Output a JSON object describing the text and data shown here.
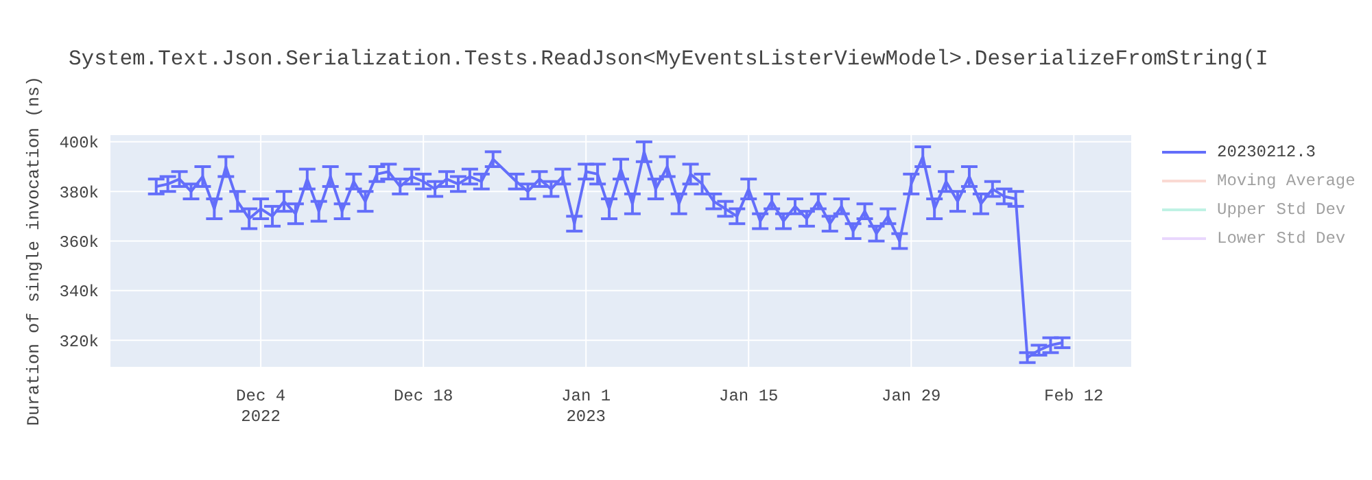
{
  "chart_data": {
    "type": "line",
    "title": "System.Text.Json.Serialization.Tests.ReadJson<MyEventsListerViewModel>.DeserializeFromString(I",
    "ylabel": "Duration of single invocation (ns)",
    "x": [
      "2022-11-25",
      "2022-11-26",
      "2022-11-27",
      "2022-11-28",
      "2022-11-29",
      "2022-11-30",
      "2022-12-01",
      "2022-12-02",
      "2022-12-03",
      "2022-12-04",
      "2022-12-05",
      "2022-12-06",
      "2022-12-07",
      "2022-12-08",
      "2022-12-09",
      "2022-12-10",
      "2022-12-11",
      "2022-12-12",
      "2022-12-13",
      "2022-12-14",
      "2022-12-15",
      "2022-12-16",
      "2022-12-17",
      "2022-12-18",
      "2022-12-19",
      "2022-12-20",
      "2022-12-21",
      "2022-12-22",
      "2022-12-23",
      "2022-12-24",
      "2022-12-26",
      "2022-12-27",
      "2022-12-28",
      "2022-12-29",
      "2022-12-30",
      "2022-12-31",
      "2023-01-01",
      "2023-01-02",
      "2023-01-03",
      "2023-01-04",
      "2023-01-05",
      "2023-01-06",
      "2023-01-07",
      "2023-01-08",
      "2023-01-09",
      "2023-01-10",
      "2023-01-11",
      "2023-01-12",
      "2023-01-13",
      "2023-01-14",
      "2023-01-15",
      "2023-01-16",
      "2023-01-17",
      "2023-01-18",
      "2023-01-19",
      "2023-01-20",
      "2023-01-21",
      "2023-01-22",
      "2023-01-23",
      "2023-01-24",
      "2023-01-25",
      "2023-01-26",
      "2023-01-27",
      "2023-01-28",
      "2023-01-29",
      "2023-01-30",
      "2023-01-31",
      "2023-02-01",
      "2023-02-02",
      "2023-02-03",
      "2023-02-04",
      "2023-02-05",
      "2023-02-06",
      "2023-02-07",
      "2023-02-08",
      "2023-02-09",
      "2023-02-10",
      "2023-02-11"
    ],
    "series": [
      {
        "name": "20230212.3",
        "color": "#636efa",
        "values": [
          382000,
          383000,
          385000,
          380000,
          386000,
          373000,
          390000,
          376000,
          369000,
          373000,
          370000,
          376000,
          371000,
          385000,
          372000,
          386000,
          372000,
          384000,
          376000,
          387000,
          388000,
          382000,
          386000,
          384000,
          381000,
          385000,
          383000,
          386000,
          384000,
          393000,
          384000,
          380000,
          385000,
          381000,
          386000,
          367000,
          388000,
          387000,
          373000,
          389000,
          375000,
          396000,
          381000,
          390000,
          375000,
          387000,
          383000,
          376000,
          373000,
          370000,
          381000,
          368000,
          376000,
          368000,
          374000,
          369000,
          376000,
          367000,
          374000,
          364000,
          372000,
          363000,
          370000,
          360000,
          383000,
          394000,
          373000,
          384000,
          376000,
          386000,
          375000,
          381000,
          378000,
          377000,
          313000,
          316000,
          318000,
          319000
        ],
        "errors": [
          3000,
          3000,
          3000,
          3000,
          4000,
          4000,
          4000,
          4000,
          4000,
          4000,
          4000,
          4000,
          4000,
          4000,
          4000,
          4000,
          3000,
          3000,
          4000,
          3000,
          3000,
          3000,
          3000,
          3000,
          3000,
          3000,
          3000,
          3000,
          3000,
          3000,
          3000,
          3000,
          3000,
          3000,
          3000,
          3000,
          3000,
          4000,
          4000,
          4000,
          4000,
          4000,
          4000,
          4000,
          4000,
          4000,
          4000,
          3000,
          3000,
          3000,
          4000,
          3000,
          3000,
          3000,
          3000,
          3000,
          3000,
          3000,
          3000,
          3000,
          3000,
          3000,
          3000,
          3000,
          4000,
          4000,
          4000,
          4000,
          4000,
          4000,
          4000,
          3000,
          3000,
          3000,
          2000,
          2000,
          3000,
          2000
        ]
      },
      {
        "name": "Moving Average",
        "color": "#f6b7a8",
        "values": [
          null,
          null,
          null,
          null,
          null,
          null,
          null,
          null,
          null,
          null,
          null,
          null,
          null,
          null,
          null,
          null,
          null,
          null,
          null,
          null,
          null,
          null,
          null,
          null,
          null,
          null,
          null,
          null,
          null,
          null,
          null,
          null,
          null,
          null,
          null,
          null,
          null,
          null,
          null,
          null,
          null,
          null,
          null,
          null,
          null,
          null,
          null,
          null,
          null,
          null,
          null,
          null,
          null,
          null,
          null,
          null,
          null,
          null,
          null,
          null,
          null,
          null,
          null,
          null,
          null,
          null,
          null,
          null,
          null,
          null,
          null,
          null,
          null,
          null,
          null,
          null,
          null,
          null
        ]
      },
      {
        "name": "Upper Std Dev",
        "color": "#80e6cb",
        "values": [
          null,
          null,
          null,
          null,
          null,
          null,
          null,
          null,
          null,
          null,
          null,
          null,
          null,
          null,
          null,
          null,
          null,
          null,
          null,
          null,
          null,
          null,
          null,
          null,
          null,
          null,
          null,
          null,
          null,
          null,
          null,
          null,
          null,
          null,
          null,
          null,
          null,
          null,
          null,
          null,
          null,
          null,
          null,
          null,
          null,
          null,
          null,
          null,
          null,
          null,
          null,
          null,
          null,
          null,
          null,
          null,
          null,
          null,
          null,
          null,
          null,
          null,
          null,
          null,
          null,
          null,
          null,
          null,
          null,
          null,
          null,
          null,
          null,
          null,
          null,
          null,
          null,
          null
        ]
      },
      {
        "name": "Lower Std Dev",
        "color": "#d5b1fd",
        "values": [
          null,
          null,
          null,
          null,
          null,
          null,
          null,
          null,
          null,
          null,
          null,
          null,
          null,
          null,
          null,
          null,
          null,
          null,
          null,
          null,
          null,
          null,
          null,
          null,
          null,
          null,
          null,
          null,
          null,
          null,
          null,
          null,
          null,
          null,
          null,
          null,
          null,
          null,
          null,
          null,
          null,
          null,
          null,
          null,
          null,
          null,
          null,
          null,
          null,
          null,
          null,
          null,
          null,
          null,
          null,
          null,
          null,
          null,
          null,
          null,
          null,
          null,
          null,
          null,
          null,
          null,
          null,
          null,
          null,
          null,
          null,
          null,
          null,
          null,
          null,
          null,
          null,
          null
        ]
      }
    ],
    "xlim": [
      "2022-11-21",
      "2023-02-17"
    ],
    "xticks": [
      {
        "value": "2022-12-04",
        "label": "Dec 4\n2022"
      },
      {
        "value": "2022-12-18",
        "label": "Dec 18"
      },
      {
        "value": "2023-01-01",
        "label": "Jan 1\n2023"
      },
      {
        "value": "2023-01-15",
        "label": "Jan 15"
      },
      {
        "value": "2023-01-29",
        "label": "Jan 29"
      },
      {
        "value": "2023-02-12",
        "label": "Feb 12"
      }
    ],
    "ylim": [
      309000,
      403000
    ],
    "yticks": [
      {
        "value": 320000,
        "label": "320k"
      },
      {
        "value": 340000,
        "label": "340k"
      },
      {
        "value": 360000,
        "label": "360k"
      },
      {
        "value": 380000,
        "label": "380k"
      },
      {
        "value": 400000,
        "label": "400k"
      }
    ],
    "grid": true,
    "legend": "top right",
    "marker": "none",
    "line_style": "solid"
  }
}
